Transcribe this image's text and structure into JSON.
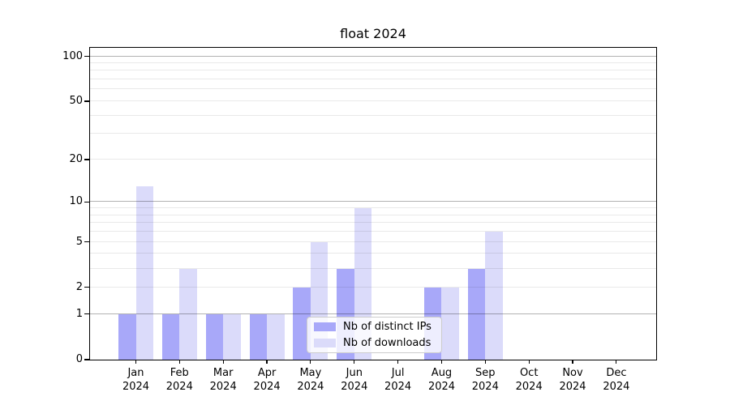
{
  "figure": {
    "title": "float 2024"
  },
  "legend": {
    "entries": [
      {
        "label": "Nb of distinct IPs",
        "color": "#a8a8f9"
      },
      {
        "label": "Nb of downloads",
        "color": "#dbdbfa"
      }
    ]
  },
  "axes": {
    "y_tick_labels": [
      "0",
      "1",
      "2",
      "5",
      "10",
      "20",
      "50",
      "100"
    ],
    "x_tick_labels": [
      "Jan 2024",
      "Feb 2024",
      "Mar 2024",
      "Apr 2024",
      "May 2024",
      "Jun 2024",
      "Jul 2024",
      "Aug 2024",
      "Sep 2024",
      "Oct 2024",
      "Nov 2024",
      "Dec 2024"
    ]
  },
  "chart_data": {
    "type": "bar",
    "title": "float 2024",
    "categories": [
      "Jan 2024",
      "Feb 2024",
      "Mar 2024",
      "Apr 2024",
      "May 2024",
      "Jun 2024",
      "Jul 2024",
      "Aug 2024",
      "Sep 2024",
      "Oct 2024",
      "Nov 2024",
      "Dec 2024"
    ],
    "series": [
      {
        "name": "Nb of distinct IPs",
        "color": "#a8a8f9",
        "values": [
          1,
          1,
          1,
          1,
          2,
          3,
          0,
          2,
          3,
          0,
          0,
          0
        ]
      },
      {
        "name": "Nb of downloads",
        "color": "#dbdbfa",
        "values": [
          13,
          3,
          1,
          1,
          5,
          9,
          0,
          2,
          6,
          0,
          0,
          0
        ]
      }
    ],
    "xlabel": "",
    "ylabel": "",
    "yscale": "log1p",
    "yticks": [
      0,
      1,
      2,
      5,
      10,
      20,
      50,
      100
    ],
    "grid_major_at": [
      1,
      10,
      100
    ],
    "grid_minor_at": [
      2,
      3,
      4,
      5,
      6,
      7,
      8,
      9,
      20,
      30,
      40,
      50,
      60,
      70,
      80,
      90
    ],
    "ylim": [
      0,
      114
    ],
    "grid": true,
    "legend_position": "lower center"
  }
}
